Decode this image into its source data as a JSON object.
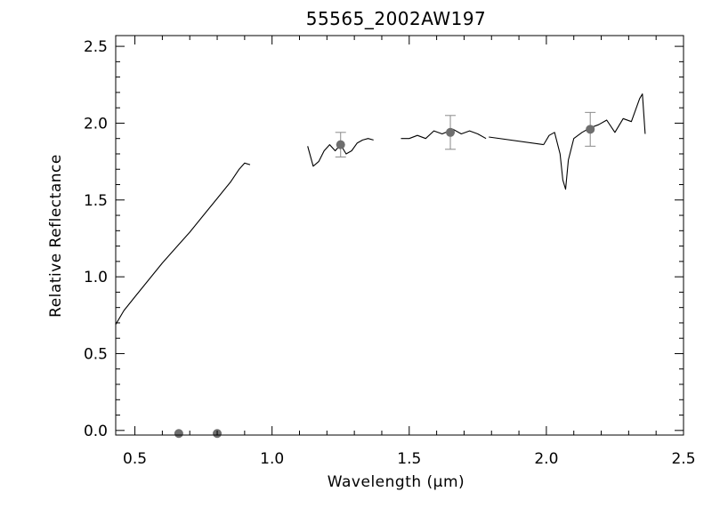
{
  "chart_data": {
    "type": "line",
    "title": "55565_2002AW197",
    "xlabel": "Wavelength (µm)",
    "ylabel": "Relative Reflectance",
    "xlim": [
      0.43,
      2.5
    ],
    "ylim": [
      -0.03,
      2.57
    ],
    "xticks": [
      0.5,
      1.0,
      1.5,
      2.0,
      2.5
    ],
    "xtick_labels": [
      "0.5",
      "1.0",
      "1.5",
      "2.0",
      "2.5"
    ],
    "yticks": [
      0.0,
      0.5,
      1.0,
      1.5,
      2.0,
      2.5
    ],
    "ytick_labels": [
      "0.0",
      "0.5",
      "1.0",
      "1.5",
      "2.0",
      "2.5"
    ],
    "grid": false,
    "series": [
      {
        "kind": "spectrum",
        "segments": [
          [
            [
              0.43,
              0.69
            ],
            [
              0.46,
              0.78
            ],
            [
              0.5,
              0.87
            ],
            [
              0.55,
              0.98
            ],
            [
              0.6,
              1.09
            ],
            [
              0.65,
              1.19
            ],
            [
              0.7,
              1.29
            ],
            [
              0.75,
              1.4
            ],
            [
              0.8,
              1.51
            ],
            [
              0.85,
              1.62
            ],
            [
              0.88,
              1.7
            ],
            [
              0.9,
              1.74
            ],
            [
              0.92,
              1.73
            ]
          ],
          [
            [
              1.13,
              1.85
            ],
            [
              1.15,
              1.72
            ],
            [
              1.17,
              1.75
            ],
            [
              1.19,
              1.82
            ],
            [
              1.21,
              1.86
            ],
            [
              1.23,
              1.82
            ],
            [
              1.25,
              1.86
            ],
            [
              1.27,
              1.8
            ],
            [
              1.29,
              1.82
            ],
            [
              1.31,
              1.87
            ],
            [
              1.33,
              1.89
            ],
            [
              1.35,
              1.9
            ],
            [
              1.37,
              1.89
            ]
          ],
          [
            [
              1.47,
              1.9
            ],
            [
              1.5,
              1.9
            ],
            [
              1.53,
              1.92
            ],
            [
              1.56,
              1.9
            ],
            [
              1.59,
              1.95
            ],
            [
              1.62,
              1.93
            ],
            [
              1.66,
              1.96
            ],
            [
              1.69,
              1.93
            ],
            [
              1.72,
              1.95
            ],
            [
              1.75,
              1.93
            ],
            [
              1.78,
              1.9
            ]
          ],
          [
            [
              1.79,
              1.91
            ],
            [
              1.99,
              1.86
            ]
          ],
          [
            [
              1.99,
              1.86
            ],
            [
              2.01,
              1.92
            ],
            [
              2.03,
              1.94
            ],
            [
              2.05,
              1.8
            ],
            [
              2.06,
              1.63
            ],
            [
              2.07,
              1.57
            ],
            [
              2.08,
              1.76
            ],
            [
              2.1,
              1.9
            ],
            [
              2.13,
              1.94
            ],
            [
              2.16,
              1.97
            ],
            [
              2.19,
              1.99
            ],
            [
              2.22,
              2.02
            ],
            [
              2.25,
              1.94
            ],
            [
              2.28,
              2.03
            ],
            [
              2.31,
              2.01
            ],
            [
              2.34,
              2.16
            ],
            [
              2.35,
              2.19
            ],
            [
              2.36,
              1.93
            ]
          ]
        ]
      }
    ],
    "photometry": [
      {
        "x": 0.66,
        "y": -0.02
      },
      {
        "x": 0.8,
        "y": -0.02
      },
      {
        "x": 1.25,
        "y": 1.86,
        "err": 0.08
      },
      {
        "x": 1.65,
        "y": 1.94,
        "err": 0.11
      },
      {
        "x": 2.16,
        "y": 1.96,
        "err": 0.11
      }
    ],
    "colors": {
      "spectrum": "#000000",
      "points": "#6e6e6e",
      "errorbars": "#8a8a8a"
    }
  }
}
